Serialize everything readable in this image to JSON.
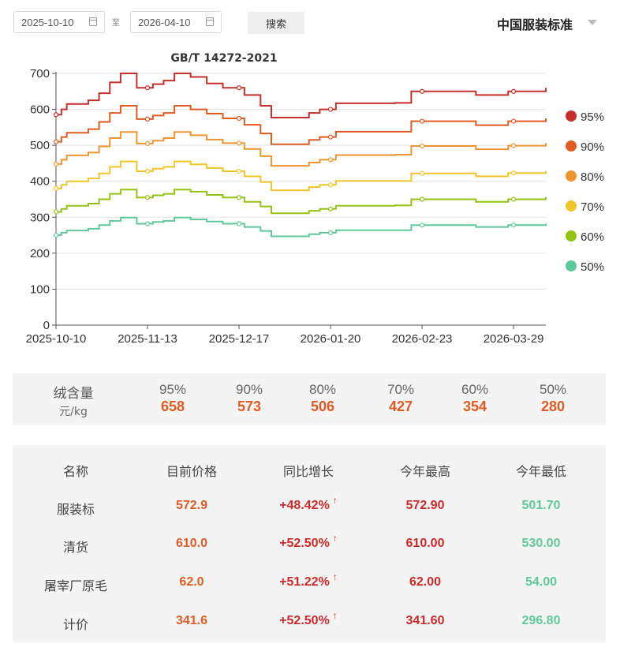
{
  "filter": {
    "start_date": "2025-10-10",
    "separator": "至",
    "end_date": "2026-04-10",
    "search_label": "搜索",
    "standard": "中国服装标准"
  },
  "chart_data": {
    "type": "line",
    "title": "GB/T 14272-2021",
    "xlabel": "",
    "ylabel": "",
    "ylim": [
      0,
      700
    ],
    "yticks": [
      0,
      100,
      200,
      300,
      400,
      500,
      600,
      700
    ],
    "xtick_labels": [
      "2025-10-10",
      "2025-11-13",
      "2025-12-17",
      "2026-01-20",
      "2026-02-23",
      "2026-03-29"
    ],
    "x_days": [
      0,
      2,
      4,
      8,
      12,
      16,
      20,
      24,
      30,
      36,
      40,
      44,
      50,
      56,
      62,
      66,
      70,
      76,
      80,
      84,
      88,
      94,
      98,
      104,
      108,
      112,
      118,
      122,
      126,
      132,
      138,
      144,
      150,
      156,
      162,
      168,
      174,
      182
    ],
    "marker_days": [
      0,
      34,
      68,
      102,
      136,
      170
    ],
    "grid": true,
    "legend_position": "right",
    "series": [
      {
        "name": "95%",
        "color": "#c62e2c",
        "values": [
          585,
          600,
          615,
          615,
          625,
          645,
          675,
          700,
          660,
          670,
          680,
          700,
          690,
          672,
          660,
          660,
          640,
          610,
          577,
          577,
          577,
          590,
          600,
          617,
          617,
          617,
          617,
          617,
          618,
          650,
          650,
          650,
          650,
          640,
          640,
          650,
          650,
          660
        ]
      },
      {
        "name": "90%",
        "color": "#e05a22",
        "values": [
          510,
          523,
          535,
          535,
          545,
          565,
          590,
          610,
          573,
          583,
          590,
          610,
          600,
          588,
          575,
          575,
          557,
          533,
          503,
          503,
          503,
          515,
          523,
          538,
          538,
          538,
          538,
          538,
          538,
          567,
          567,
          567,
          567,
          556,
          556,
          567,
          567,
          575
        ]
      },
      {
        "name": "80%",
        "color": "#ee9530",
        "values": [
          448,
          460,
          472,
          472,
          480,
          497,
          520,
          537,
          505,
          513,
          520,
          537,
          528,
          516,
          506,
          506,
          490,
          470,
          443,
          443,
          443,
          452,
          460,
          473,
          473,
          473,
          473,
          473,
          474,
          498,
          498,
          498,
          498,
          489,
          489,
          499,
          499,
          506
        ]
      },
      {
        "name": "70%",
        "color": "#efc52a",
        "values": [
          380,
          390,
          400,
          400,
          408,
          422,
          440,
          455,
          428,
          435,
          440,
          455,
          447,
          437,
          428,
          428,
          414,
          398,
          375,
          375,
          375,
          384,
          390,
          401,
          401,
          401,
          401,
          401,
          401,
          422,
          422,
          422,
          422,
          414,
          414,
          423,
          423,
          429
        ]
      },
      {
        "name": "60%",
        "color": "#93c215",
        "values": [
          315,
          323,
          332,
          332,
          338,
          350,
          365,
          377,
          355,
          361,
          365,
          377,
          371,
          362,
          355,
          355,
          343,
          330,
          311,
          311,
          311,
          318,
          323,
          332,
          332,
          332,
          332,
          332,
          333,
          350,
          350,
          350,
          350,
          343,
          343,
          350,
          350,
          356
        ]
      },
      {
        "name": "50%",
        "color": "#5ec89c",
        "values": [
          250,
          257,
          263,
          263,
          268,
          278,
          290,
          299,
          282,
          287,
          290,
          299,
          294,
          288,
          282,
          282,
          273,
          262,
          247,
          247,
          247,
          253,
          257,
          264,
          264,
          264,
          264,
          264,
          264,
          278,
          278,
          278,
          278,
          273,
          273,
          278,
          278,
          282
        ]
      }
    ]
  },
  "summary": {
    "label_line1": "绒含量",
    "label_line2": "元/kg",
    "items": [
      {
        "pct": "95%",
        "price": "658"
      },
      {
        "pct": "90%",
        "price": "573"
      },
      {
        "pct": "80%",
        "price": "506"
      },
      {
        "pct": "70%",
        "price": "427"
      },
      {
        "pct": "60%",
        "price": "354"
      },
      {
        "pct": "50%",
        "price": "280"
      }
    ]
  },
  "table": {
    "headers": [
      "名称",
      "目前价格",
      "同比增长",
      "今年最高",
      "今年最低"
    ],
    "arrow": "↑",
    "rows": [
      {
        "name": "服装标",
        "current": "572.9",
        "yoy": "+48.42%",
        "high": "572.90",
        "low": "501.70"
      },
      {
        "name": "清货",
        "current": "610.0",
        "yoy": "+52.50%",
        "high": "610.00",
        "low": "530.00"
      },
      {
        "name": "屠宰厂原毛",
        "current": "62.0",
        "yoy": "+51.22%",
        "high": "62.00",
        "low": "54.00"
      },
      {
        "name": "计价",
        "current": "341.6",
        "yoy": "+52.50%",
        "high": "341.60",
        "low": "296.80"
      }
    ]
  }
}
